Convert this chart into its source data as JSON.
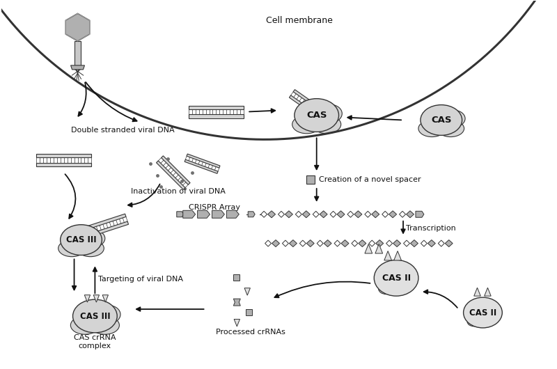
{
  "background_color": "#ffffff",
  "labels": {
    "cell_membrane": "Cell membrane",
    "double_stranded": "Double stranded viral DNA",
    "inactivation": "Inactivation of viral DNA",
    "targeting": "Targeting of viral DNA",
    "crispr_array": "CRISPR Array",
    "creation_spacer": "Creation of a novel spacer",
    "transcription": "Transcription",
    "processed_crrnas": "Processed crRNAs",
    "cas_crrna": "CAS crRNA\ncomplex",
    "cas_iii_1": "CAS III",
    "cas_iii_2": "CAS III",
    "cas_ii_1": "CAS II",
    "cas_ii_2": "CAS II",
    "cas_1": "CAS",
    "cas_2": "CAS"
  },
  "gray_light": "#c8c8c8",
  "gray_medium": "#b0b0b0",
  "gray_dark": "#707070",
  "gray_fill": "#d4d4d4",
  "gray_fill2": "#e0e0e0",
  "outline_color": "#333333",
  "arrow_color": "#111111",
  "text_color": "#111111",
  "font_size_label": 8.5,
  "font_size_small": 8.0
}
